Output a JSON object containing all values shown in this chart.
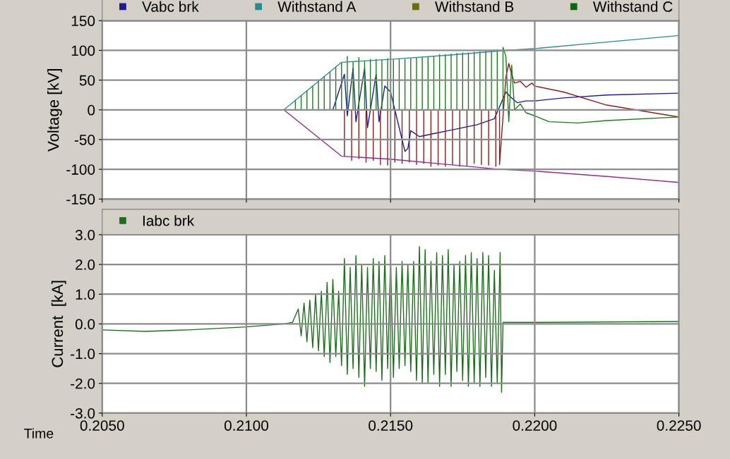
{
  "chart_data": [
    {
      "type": "line",
      "ylabel": "Voltage [kV]",
      "xlim": [
        0.205,
        0.225
      ],
      "xticks": [
        0.205,
        0.21,
        0.215,
        0.22,
        0.225
      ],
      "ylim": [
        -150,
        150
      ],
      "yticks": [
        -150,
        -100,
        -50,
        0,
        50,
        100,
        150
      ],
      "grid": true,
      "legend": "top",
      "tick_labels": "y",
      "series": [
        {
          "name": "Vabc brk",
          "color": "#1c1c8c",
          "x": [
            0.205,
            0.2113,
            0.213,
            0.2134,
            0.2135,
            0.2137,
            0.2138,
            0.2141,
            0.2142,
            0.2145,
            0.2146,
            0.2148,
            0.215,
            0.2152,
            0.2155,
            0.2156,
            0.2157,
            0.216,
            0.2165,
            0.217,
            0.2175,
            0.218,
            0.2186,
            0.219,
            0.2192,
            0.2194,
            0.2197,
            0.22,
            0.221,
            0.2225,
            0.225
          ],
          "values": [
            0,
            0,
            0,
            60,
            -10,
            70,
            -20,
            70,
            -30,
            60,
            -20,
            40,
            30,
            -10,
            -70,
            -65,
            -35,
            -45,
            -40,
            -35,
            -30,
            -25,
            -15,
            30,
            20,
            12,
            15,
            15,
            20,
            25,
            28
          ]
        },
        {
          "color": "#8c1c1c",
          "x": [
            0.205,
            0.2134,
            0.2134,
            0.2134,
            0.21365,
            0.21365,
            0.21365,
            0.2139,
            0.2139,
            0.2139,
            0.21415,
            0.21415,
            0.21415,
            0.2144,
            0.2144,
            0.2144,
            0.21465,
            0.21465,
            0.21465,
            0.2149,
            0.2149,
            0.2149,
            0.21515,
            0.21515,
            0.21515,
            0.2154,
            0.2154,
            0.2154,
            0.21565,
            0.21565,
            0.21565,
            0.2159,
            0.2159,
            0.2159,
            0.21615,
            0.21615,
            0.21615,
            0.2164,
            0.2164,
            0.2164,
            0.21665,
            0.21665,
            0.21665,
            0.2169,
            0.2169,
            0.2169,
            0.21715,
            0.21715,
            0.21715,
            0.2174,
            0.2174,
            0.2174,
            0.21765,
            0.21765,
            0.21765,
            0.2179,
            0.2179,
            0.2179,
            0.21815,
            0.21815,
            0.21815,
            0.2184,
            0.2184,
            0.2184,
            0.21865,
            0.21865,
            0.21865,
            0.21878,
            0.21878,
            0.219,
            0.2191,
            0.2192,
            0.2193,
            0.2195,
            0.2197,
            0.2199,
            0.22,
            0.221,
            0.2225,
            0.225
          ],
          "values": [
            0,
            0,
            -78,
            0,
            0,
            -85,
            0,
            0,
            -82,
            0,
            0,
            -88,
            0,
            0,
            -85,
            0,
            0,
            -92,
            0,
            0,
            -93,
            0,
            0,
            -88,
            0,
            0,
            -90,
            0,
            0,
            -88,
            0,
            0,
            -92,
            0,
            0,
            -90,
            0,
            0,
            -95,
            0,
            0,
            -93,
            0,
            0,
            -95,
            0,
            0,
            -92,
            0,
            0,
            -95,
            0,
            0,
            -94,
            0,
            0,
            -90,
            0,
            0,
            -92,
            0,
            0,
            -93,
            0,
            0,
            -95,
            0,
            0,
            -92,
            55,
            78,
            60,
            45,
            48,
            38,
            45,
            40,
            30,
            8,
            -12
          ]
        },
        {
          "color": "#1f7a1f",
          "x": [
            0.205,
            0.2117,
            0.2117,
            0.2117,
            0.2119,
            0.2119,
            0.2119,
            0.2121,
            0.2121,
            0.2121,
            0.2123,
            0.2123,
            0.2123,
            0.2125,
            0.2125,
            0.2125,
            0.2127,
            0.2127,
            0.2127,
            0.2129,
            0.2129,
            0.2129,
            0.2131,
            0.2131,
            0.2131,
            0.2133,
            0.2133,
            0.2133,
            0.2135,
            0.2135,
            0.2135,
            0.2137,
            0.2137,
            0.2137,
            0.2139,
            0.2139,
            0.2139,
            0.2141,
            0.2141,
            0.2141,
            0.2143,
            0.2143,
            0.2143,
            0.2145,
            0.2145,
            0.2145,
            0.2147,
            0.2147,
            0.2147,
            0.2149,
            0.2149,
            0.2149,
            0.2151,
            0.2151,
            0.2151,
            0.2153,
            0.2153,
            0.2153,
            0.2155,
            0.2155,
            0.2155,
            0.2157,
            0.2157,
            0.2157,
            0.2159,
            0.2159,
            0.2159,
            0.2161,
            0.2161,
            0.2161,
            0.2163,
            0.2163,
            0.2163,
            0.2165,
            0.2165,
            0.2165,
            0.2167,
            0.2167,
            0.2167,
            0.2169,
            0.2169,
            0.2169,
            0.2171,
            0.2171,
            0.2171,
            0.2173,
            0.2173,
            0.2173,
            0.2175,
            0.2175,
            0.2175,
            0.2177,
            0.2177,
            0.2177,
            0.2179,
            0.2179,
            0.2179,
            0.2181,
            0.2181,
            0.2181,
            0.2183,
            0.2183,
            0.2183,
            0.2185,
            0.2185,
            0.2185,
            0.2187,
            0.2187,
            0.2187,
            0.2189,
            0.2189,
            0.219,
            0.2191,
            0.2192,
            0.2193,
            0.2195,
            0.2197,
            0.22,
            0.2205,
            0.2215,
            0.2225,
            0.225
          ],
          "values": [
            0,
            0,
            16,
            0,
            0,
            24,
            0,
            0,
            32,
            0,
            0,
            40,
            0,
            0,
            48,
            0,
            0,
            56,
            0,
            0,
            64,
            0,
            0,
            72,
            0,
            0,
            80,
            0,
            0,
            90,
            0,
            0,
            81,
            0,
            0,
            88,
            0,
            0,
            82,
            0,
            0,
            85,
            0,
            0,
            85,
            0,
            0,
            84,
            0,
            0,
            86,
            0,
            0,
            84,
            0,
            0,
            85,
            0,
            0,
            85,
            0,
            0,
            86,
            0,
            0,
            88,
            0,
            0,
            88,
            0,
            0,
            89,
            0,
            0,
            90,
            0,
            0,
            93,
            0,
            0,
            93,
            0,
            0,
            94,
            0,
            0,
            95,
            0,
            0,
            96,
            0,
            0,
            96,
            0,
            0,
            97,
            0,
            0,
            98,
            0,
            0,
            99,
            0,
            0,
            99,
            0,
            0,
            101,
            0,
            0,
            105,
            90,
            -20,
            75,
            0,
            10,
            -5,
            -10,
            -20,
            -22,
            -18,
            -12
          ]
        },
        {
          "name": "Withstand A",
          "color": "#2e8b8b",
          "x": [
            0.205,
            0.2113,
            0.2133,
            0.215,
            0.217,
            0.219,
            0.22,
            0.2225,
            0.225
          ],
          "values": [
            0,
            0,
            80,
            85,
            92,
            100,
            103,
            114,
            125
          ]
        },
        {
          "color": "#8b2e8b",
          "x": [
            0.205,
            0.2113,
            0.2133,
            0.215,
            0.217,
            0.2188,
            0.22,
            0.2225,
            0.225
          ],
          "values": [
            0,
            0,
            -78,
            -83,
            -92,
            -100,
            -103,
            -112,
            -122
          ]
        },
        {
          "name": "Withstand B",
          "color": "#6b6b10"
        },
        {
          "name": "Withstand C",
          "color": "#0a6a0a"
        }
      ]
    },
    {
      "type": "line",
      "ylabel": "Current  [kA]",
      "xlabel": "Time",
      "xlim": [
        0.205,
        0.225
      ],
      "xticks": [
        {
          "value": 0.205,
          "label": "0.2050"
        },
        {
          "value": 0.21,
          "label": "0.2100"
        },
        {
          "value": 0.215,
          "label": "0.2150"
        },
        {
          "value": 0.22,
          "label": "0.2200"
        },
        {
          "value": 0.225,
          "label": "0.2250"
        }
      ],
      "ylim": [
        -3,
        3
      ],
      "yticks": [
        {
          "value": -3,
          "label": "-3.0"
        },
        {
          "value": -2,
          "label": "-2.0"
        },
        {
          "value": -1,
          "label": "-1.0"
        },
        {
          "value": 0,
          "label": "0.0"
        },
        {
          "value": 1,
          "label": "1.0"
        },
        {
          "value": 2,
          "label": "2.0"
        },
        {
          "value": 3,
          "label": "3.0"
        }
      ],
      "grid": true,
      "legend": "top",
      "series": [
        {
          "name": "Iabc brk",
          "color": "#1f6e1f",
          "x": [
            0.205,
            0.2065,
            0.208,
            0.21,
            0.2113,
            0.2116,
            0.2118,
            0.2119,
            0.212,
            0.2121,
            0.2122,
            0.2123,
            0.2124,
            0.2125,
            0.2126,
            0.2127,
            0.2128,
            0.2129,
            0.213,
            0.2131,
            0.2132,
            0.2133,
            0.2134,
            0.2135,
            0.2136,
            0.2137,
            0.2138,
            0.2139,
            0.214,
            0.2141,
            0.2142,
            0.2143,
            0.2144,
            0.2145,
            0.2146,
            0.2147,
            0.2148,
            0.2149,
            0.215,
            0.2151,
            0.2152,
            0.2153,
            0.2154,
            0.2155,
            0.2156,
            0.2157,
            0.2158,
            0.2159,
            0.216,
            0.2161,
            0.2162,
            0.2163,
            0.2164,
            0.2165,
            0.2166,
            0.2167,
            0.2168,
            0.2169,
            0.217,
            0.2171,
            0.2172,
            0.2173,
            0.2174,
            0.2175,
            0.2176,
            0.2177,
            0.2178,
            0.2179,
            0.218,
            0.2181,
            0.2182,
            0.2183,
            0.2184,
            0.2185,
            0.2186,
            0.2187,
            0.2188,
            0.21885,
            0.2189,
            0.22,
            0.225
          ],
          "values": [
            -0.2,
            -0.25,
            -0.2,
            -0.1,
            0,
            0.05,
            0.5,
            -0.4,
            0.7,
            -0.6,
            0.8,
            -0.8,
            1.0,
            -0.9,
            1.1,
            -1.1,
            1.4,
            -1.3,
            1.5,
            -1.1,
            1.1,
            -1.4,
            2.2,
            -1.7,
            1.9,
            -1.5,
            2.3,
            -1.8,
            2.0,
            -2.1,
            1.9,
            -1.5,
            2.2,
            -1.6,
            2.1,
            -1.9,
            2.3,
            -1.5,
            2.2,
            -1.8,
            1.9,
            -1.5,
            2.1,
            -1.4,
            2.0,
            -1.6,
            2.1,
            -1.9,
            2.6,
            -2.0,
            2.5,
            -2.0,
            2.1,
            -1.7,
            2.4,
            -2.1,
            2.3,
            -1.7,
            2.5,
            -2.1,
            2.0,
            -1.6,
            2.1,
            -1.9,
            2.3,
            -2.1,
            2.4,
            -2.0,
            2.2,
            -2.1,
            2.4,
            -1.8,
            2.3,
            -2.1,
            1.8,
            -2.0,
            2.4,
            -2.3,
            0.05,
            0.05,
            0.08
          ]
        }
      ]
    }
  ]
}
